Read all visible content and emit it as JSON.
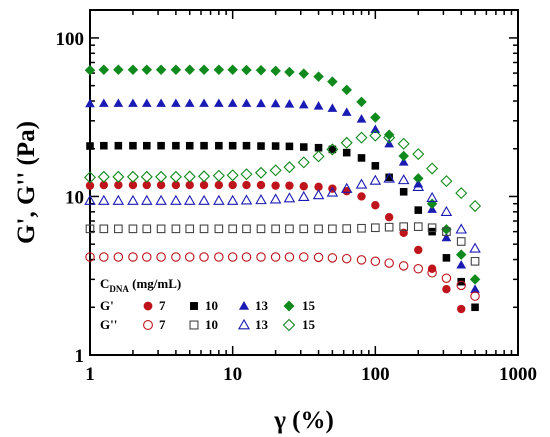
{
  "chart_data": {
    "type": "scatter",
    "xlabel": "γ (%)",
    "ylabel": "G', G'' (Pa)",
    "xscale": "log",
    "yscale": "log",
    "xlim": [
      1,
      1000
    ],
    "ylim": [
      1,
      150
    ],
    "x_ticks": [
      "1",
      "10",
      "100",
      "1000"
    ],
    "y_ticks": [
      "1",
      "10",
      "100"
    ],
    "grid": false,
    "legend": {
      "placement": "bottom-left",
      "header_main": "C",
      "header_sub": "DNA",
      "header_unit": " (mg/mL)",
      "rows": [
        {
          "label": "G'",
          "entries": [
            {
              "value": "7",
              "series": "gp7"
            },
            {
              "value": "10",
              "series": "gp10"
            },
            {
              "value": "13",
              "series": "gp13"
            },
            {
              "value": "15",
              "series": "gp15"
            }
          ]
        },
        {
          "label": "G''",
          "entries": [
            {
              "value": "7",
              "series": "gpp7"
            },
            {
              "value": "10",
              "series": "gpp10"
            },
            {
              "value": "13",
              "series": "gpp13"
            },
            {
              "value": "15",
              "series": "gpp15"
            }
          ]
        }
      ]
    },
    "series": [
      {
        "key": "gp7",
        "marker": "circle",
        "filled": true,
        "color": "#c0141c",
        "x": [
          1,
          1.25,
          1.58,
          2,
          2.5,
          3.15,
          4,
          5,
          6.3,
          8,
          10,
          12.5,
          15.8,
          20,
          25,
          31.5,
          40,
          50,
          63,
          80,
          100,
          125,
          158,
          200,
          250,
          315,
          400
        ],
        "y": [
          11.7,
          11.8,
          11.8,
          11.8,
          11.8,
          11.8,
          11.8,
          11.8,
          11.8,
          11.8,
          11.8,
          11.8,
          11.8,
          11.7,
          11.7,
          11.6,
          11.5,
          11.2,
          10.8,
          10.0,
          8.8,
          7.4,
          5.9,
          4.6,
          3.5,
          2.6,
          1.95
        ]
      },
      {
        "key": "gp10",
        "marker": "square",
        "filled": true,
        "color": "#000000",
        "x": [
          1,
          1.25,
          1.58,
          2,
          2.5,
          3.15,
          4,
          5,
          6.3,
          8,
          10,
          12.5,
          15.8,
          20,
          25,
          31.5,
          40,
          50,
          63,
          80,
          100,
          125,
          158,
          200,
          250,
          315,
          400,
          500
        ],
        "y": [
          20.8,
          20.9,
          20.9,
          20.9,
          20.9,
          20.9,
          20.9,
          20.9,
          20.9,
          20.9,
          20.9,
          20.9,
          20.8,
          20.8,
          20.7,
          20.5,
          20.3,
          19.8,
          18.9,
          17.5,
          15.6,
          13.2,
          10.7,
          8.2,
          6.0,
          4.1,
          2.9,
          2.0
        ]
      },
      {
        "key": "gp13",
        "marker": "triangle",
        "filled": true,
        "color": "#1a1ab4",
        "x": [
          1,
          1.25,
          1.58,
          2,
          2.5,
          3.15,
          4,
          5,
          6.3,
          8,
          10,
          12.5,
          15.8,
          20,
          25,
          31.5,
          40,
          50,
          63,
          80,
          100,
          125,
          158,
          200,
          250,
          315,
          400,
          500
        ],
        "y": [
          38.5,
          38.7,
          38.7,
          38.7,
          38.7,
          38.7,
          38.7,
          38.7,
          38.7,
          38.7,
          38.7,
          38.7,
          38.6,
          38.5,
          38.3,
          37.9,
          37.2,
          36.0,
          34.0,
          30.8,
          26.5,
          21.5,
          16.5,
          12.0,
          8.3,
          5.5,
          3.7,
          2.6
        ]
      },
      {
        "key": "gp15",
        "marker": "diamond",
        "filled": true,
        "color": "#108a1c",
        "x": [
          1,
          1.25,
          1.58,
          2,
          2.5,
          3.15,
          4,
          5,
          6.3,
          8,
          10,
          12.5,
          15.8,
          20,
          25,
          31.5,
          40,
          50,
          63,
          80,
          100,
          125,
          158,
          200,
          250,
          315,
          400,
          500
        ],
        "y": [
          62.5,
          63,
          63,
          63,
          63,
          63,
          63,
          63,
          63,
          63,
          63,
          62.8,
          62.5,
          62,
          61,
          59.5,
          57,
          53,
          47,
          39.5,
          31.5,
          24.5,
          18,
          13,
          9,
          6.2,
          4.3,
          3.0
        ]
      },
      {
        "key": "gpp7",
        "marker": "circle",
        "filled": false,
        "color": "#c0141c",
        "x": [
          1,
          1.25,
          1.58,
          2,
          2.5,
          3.15,
          4,
          5,
          6.3,
          8,
          10,
          12.5,
          15.8,
          20,
          25,
          31.5,
          40,
          50,
          63,
          80,
          100,
          125,
          158,
          200,
          250,
          315,
          400,
          500
        ],
        "y": [
          4.15,
          4.15,
          4.15,
          4.15,
          4.15,
          4.15,
          4.15,
          4.15,
          4.15,
          4.15,
          4.15,
          4.15,
          4.15,
          4.15,
          4.15,
          4.15,
          4.13,
          4.1,
          4.05,
          3.98,
          3.9,
          3.8,
          3.65,
          3.5,
          3.3,
          3.05,
          2.75,
          2.35
        ]
      },
      {
        "key": "gpp10",
        "marker": "square",
        "filled": false,
        "color": "#444444",
        "x": [
          1,
          1.25,
          1.58,
          2,
          2.5,
          3.15,
          4,
          5,
          6.3,
          8,
          10,
          12.5,
          15.8,
          20,
          25,
          31.5,
          40,
          50,
          63,
          80,
          100,
          125,
          158,
          200,
          250,
          315,
          400,
          500
        ],
        "y": [
          6.25,
          6.25,
          6.25,
          6.25,
          6.25,
          6.25,
          6.25,
          6.25,
          6.25,
          6.25,
          6.25,
          6.25,
          6.25,
          6.25,
          6.25,
          6.25,
          6.25,
          6.25,
          6.27,
          6.3,
          6.35,
          6.4,
          6.45,
          6.45,
          6.35,
          6.0,
          5.2,
          3.9
        ]
      },
      {
        "key": "gpp13",
        "marker": "triangle",
        "filled": false,
        "color": "#1a1ab4",
        "x": [
          1,
          1.25,
          1.58,
          2,
          2.5,
          3.15,
          4,
          5,
          6.3,
          8,
          10,
          12.5,
          15.8,
          20,
          25,
          31.5,
          40,
          50,
          63,
          80,
          100,
          125,
          158,
          200,
          250,
          315,
          400,
          500
        ],
        "y": [
          9.4,
          9.4,
          9.4,
          9.4,
          9.4,
          9.4,
          9.4,
          9.4,
          9.4,
          9.4,
          9.4,
          9.45,
          9.5,
          9.6,
          9.75,
          9.95,
          10.2,
          10.6,
          11.2,
          11.9,
          12.6,
          13.0,
          12.7,
          11.5,
          9.8,
          8.0,
          6.2,
          4.7
        ]
      },
      {
        "key": "gpp15",
        "marker": "diamond",
        "filled": false,
        "color": "#108a1c",
        "x": [
          1,
          1.25,
          1.58,
          2,
          2.5,
          3.15,
          4,
          5,
          6.3,
          8,
          10,
          12.5,
          15.8,
          20,
          25,
          31.5,
          40,
          50,
          63,
          80,
          100,
          125,
          158,
          200,
          250,
          315,
          400,
          500
        ],
        "y": [
          13.2,
          13.3,
          13.3,
          13.3,
          13.3,
          13.3,
          13.3,
          13.35,
          13.4,
          13.5,
          13.6,
          13.8,
          14.1,
          14.6,
          15.3,
          16.4,
          17.9,
          19.8,
          21.8,
          23.5,
          24.2,
          23.5,
          21.5,
          18.5,
          15.0,
          12.5,
          10.5,
          8.7
        ]
      }
    ]
  }
}
